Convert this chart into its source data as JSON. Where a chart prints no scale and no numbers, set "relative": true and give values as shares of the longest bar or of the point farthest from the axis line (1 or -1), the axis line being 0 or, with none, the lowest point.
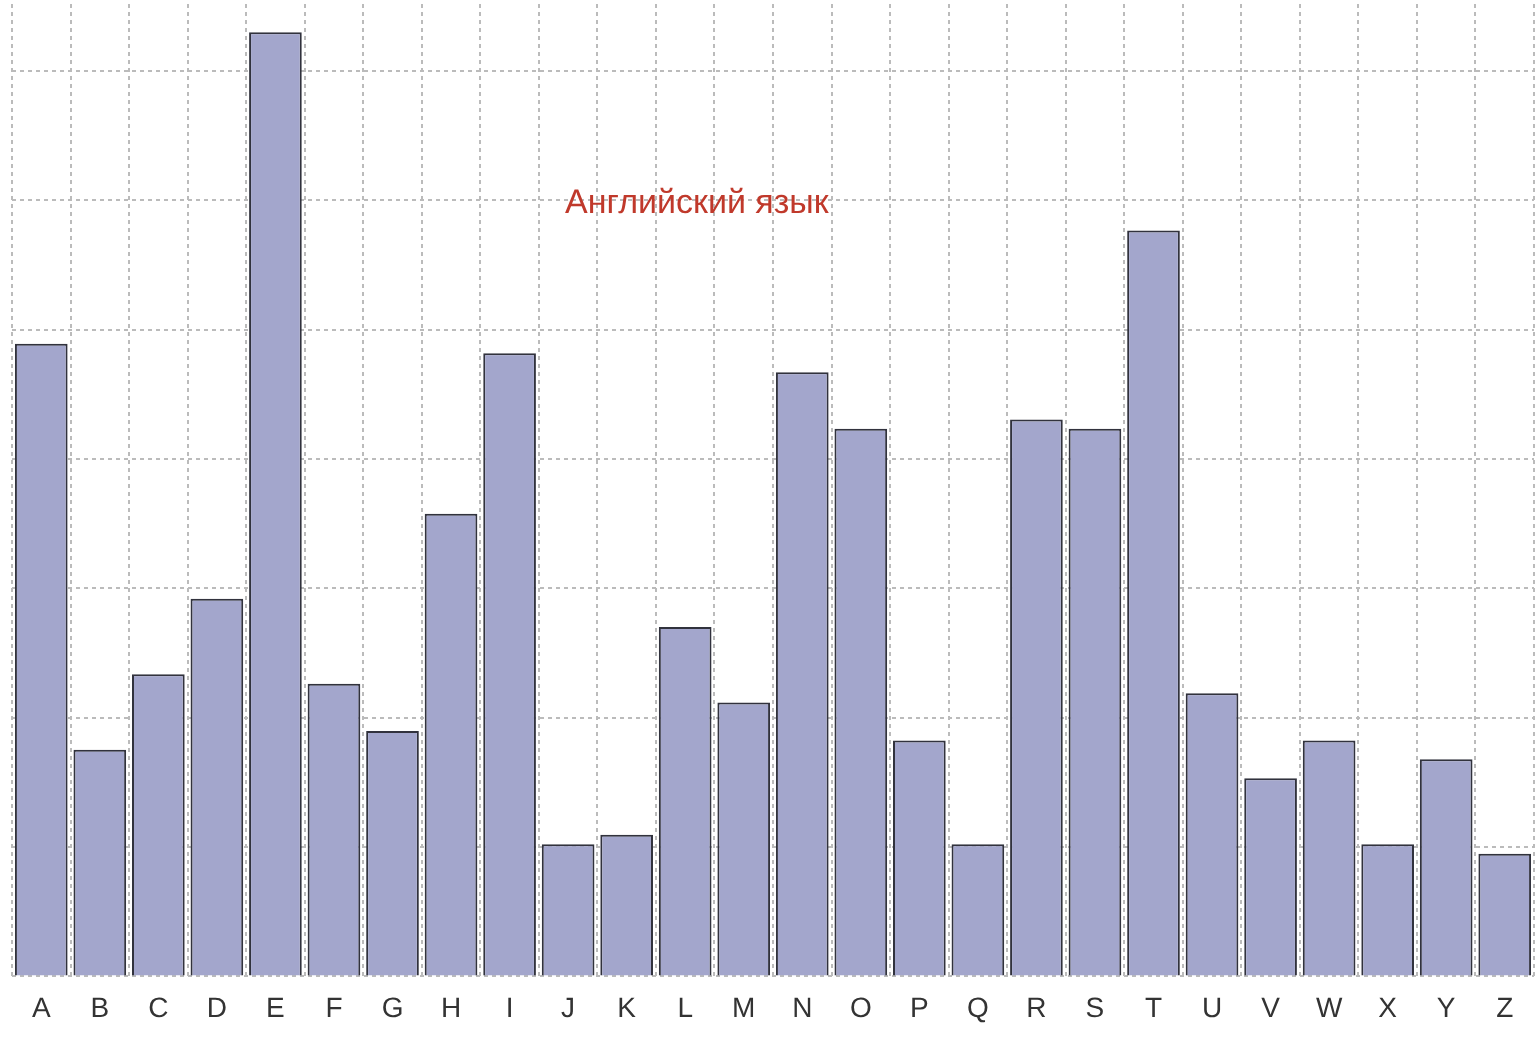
{
  "chart_data": {
    "type": "bar",
    "relative": true,
    "annotations": [
      "Английский язык"
    ],
    "categories": [
      "A",
      "B",
      "C",
      "D",
      "E",
      "F",
      "G",
      "H",
      "I",
      "J",
      "K",
      "L",
      "M",
      "N",
      "O",
      "P",
      "Q",
      "R",
      "S",
      "T",
      "U",
      "V",
      "W",
      "X",
      "Y",
      "Z"
    ],
    "values": [
      0.67,
      0.24,
      0.32,
      0.4,
      1,
      0.31,
      0.26,
      0.49,
      0.66,
      0.14,
      0.15,
      0.37,
      0.29,
      0.64,
      0.58,
      0.25,
      0.14,
      0.59,
      0.58,
      0.79,
      0.3,
      0.21,
      0.25,
      0.14,
      0.23,
      0.13
    ],
    "color": "#a3a6cc",
    "grid": true
  }
}
